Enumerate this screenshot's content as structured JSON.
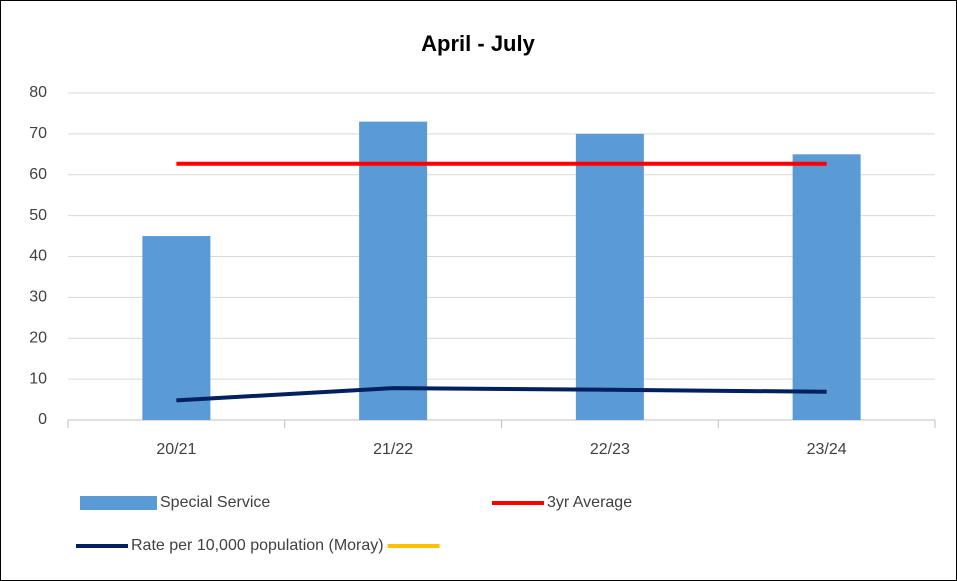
{
  "chart_data": {
    "type": "bar",
    "title": "April - July",
    "categories": [
      "20/21",
      "21/22",
      "22/23",
      "23/24"
    ],
    "series": [
      {
        "name": "Special Service",
        "type": "bar",
        "color": "#5b9bd5",
        "values": [
          45,
          73,
          70,
          65
        ]
      },
      {
        "name": "3yr Average",
        "type": "line",
        "color": "#ff0000",
        "values": [
          62.7,
          62.7,
          62.7,
          62.7
        ]
      },
      {
        "name": "Rate per 10,000 population (Moray)",
        "type": "line",
        "color": "#002060",
        "values": [
          4.8,
          7.8,
          7.4,
          6.9
        ]
      },
      {
        "type": "line",
        "color": "#ffc000",
        "values": [
          null,
          null,
          null,
          null
        ]
      }
    ],
    "ylim": [
      0,
      80
    ],
    "yticks": [
      0,
      10,
      20,
      30,
      40,
      50,
      60,
      70,
      80
    ],
    "grid": true,
    "legend": "bottom"
  }
}
